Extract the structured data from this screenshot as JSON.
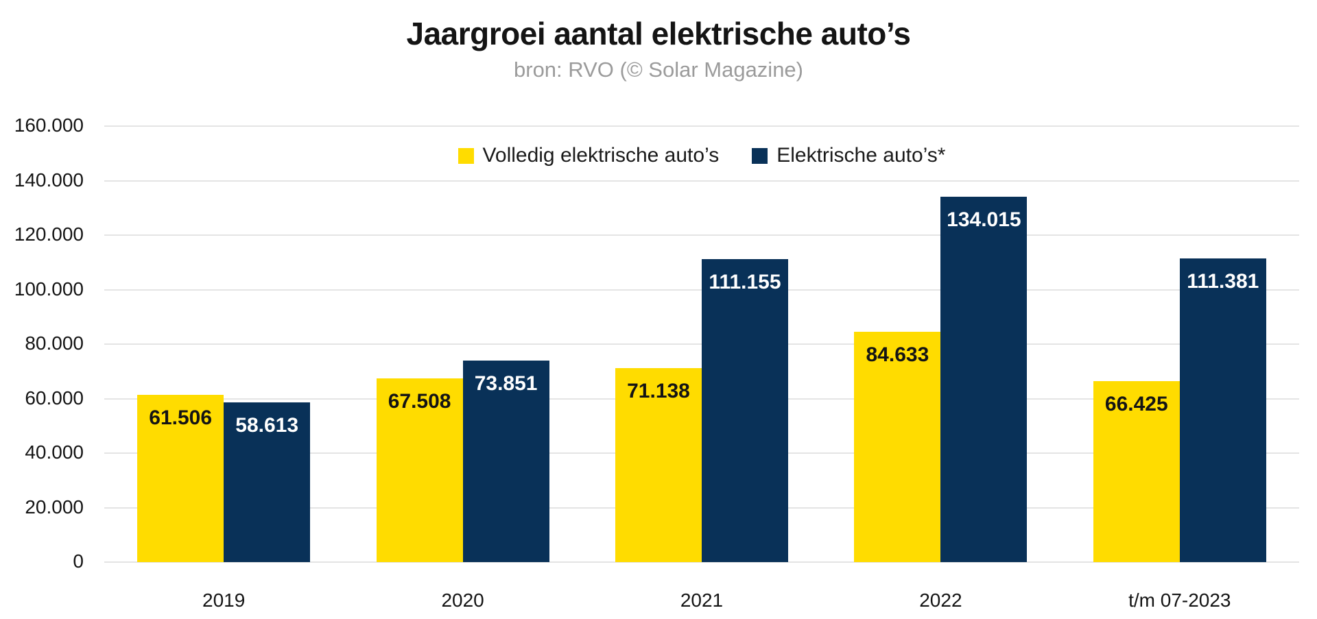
{
  "header": {
    "title": "Jaargroei aantal elektrische auto’s",
    "subtitle": "bron: RVO (© Solar Magazine)"
  },
  "chart_data": {
    "type": "bar",
    "title": "Jaargroei aantal elektrische auto’s",
    "subtitle": "bron: RVO (© Solar Magazine)",
    "categories": [
      "2019",
      "2020",
      "2021",
      "2022",
      "t/m 07-2023"
    ],
    "series": [
      {
        "name": "Volledig elektrische auto’s",
        "color": "#ffdc00",
        "label_color": "#141414",
        "values": [
          61506,
          67508,
          71138,
          84633,
          66425
        ],
        "labels": [
          "61.506",
          "67.508",
          "71.138",
          "84.633",
          "66.425"
        ]
      },
      {
        "name": "Elektrische auto’s*",
        "color": "#093158",
        "label_color": "#ffffff",
        "values": [
          58613,
          73851,
          111155,
          134015,
          111381
        ],
        "labels": [
          "58.613",
          "73.851",
          "111.155",
          "134.015",
          "111.381"
        ]
      }
    ],
    "ylim": [
      0,
      160000
    ],
    "yticks": [
      {
        "value": 0,
        "label": "0"
      },
      {
        "value": 20000,
        "label": "20.000"
      },
      {
        "value": 40000,
        "label": "40.000"
      },
      {
        "value": 60000,
        "label": "60.000"
      },
      {
        "value": 80000,
        "label": "80.000"
      },
      {
        "value": 100000,
        "label": "100.000"
      },
      {
        "value": 120000,
        "label": "120.000"
      },
      {
        "value": 140000,
        "label": "140.000"
      },
      {
        "value": 160000,
        "label": "160.000"
      }
    ],
    "grid": true,
    "legend_position": "top-center",
    "style": {
      "grid_color": "#e4e4e4",
      "axis_text_color": "#141414",
      "subtitle_color": "#9b9b9b",
      "background": "#ffffff"
    }
  }
}
